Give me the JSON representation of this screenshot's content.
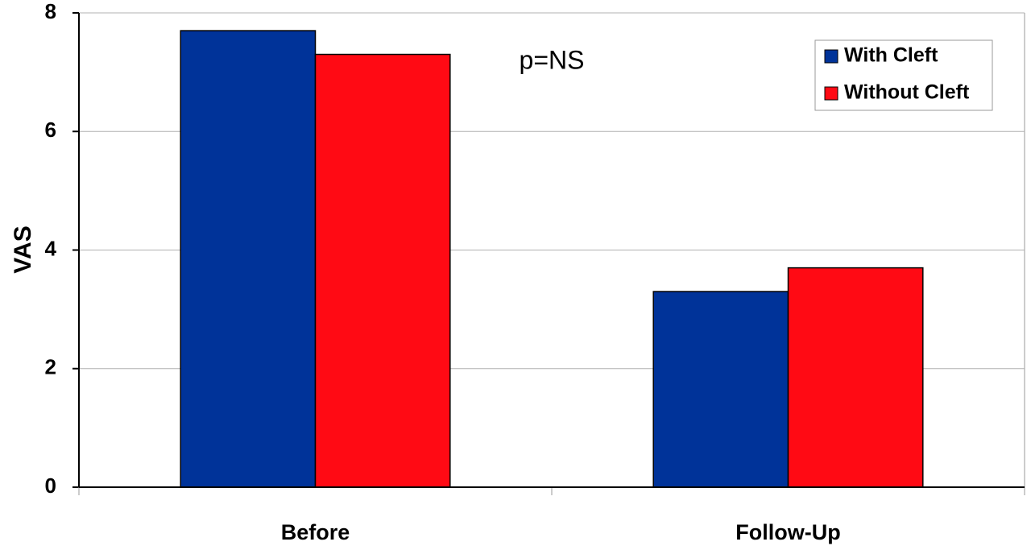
{
  "chart_data": {
    "type": "bar",
    "y_label": "VAS",
    "annotation": "p=NS",
    "categories": [
      "Before",
      "Follow-Up"
    ],
    "series": [
      {
        "name": "With Cleft",
        "color": "#003399",
        "values": [
          7.7,
          3.3
        ]
      },
      {
        "name": "Without Cleft",
        "color": "#ff0a14",
        "values": [
          7.3,
          3.7
        ]
      }
    ],
    "ylim": [
      0,
      8
    ],
    "yticks": [
      0,
      2,
      4,
      6,
      8
    ],
    "grid": true,
    "legend": "top-right"
  }
}
